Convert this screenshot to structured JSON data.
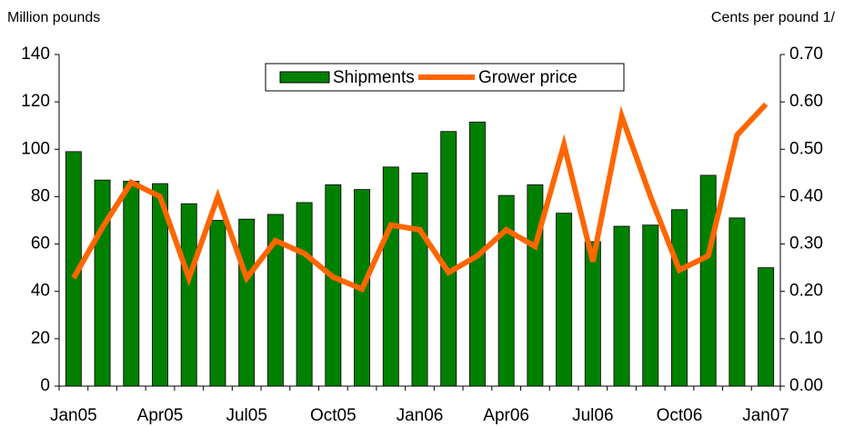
{
  "chart_data": {
    "type": "bar-line",
    "y_label": "Million pounds",
    "y2_label": "Cents per pound 1/",
    "categories": [
      "Jan05",
      null,
      null,
      "Apr05",
      null,
      null,
      "Jul05",
      null,
      null,
      "Oct05",
      null,
      null,
      "Jan06",
      null,
      null,
      "Apr06",
      null,
      null,
      "Jul06",
      null,
      null,
      "Oct06",
      null,
      null,
      "Jan07"
    ],
    "series": [
      {
        "name": "Shipments",
        "type": "bar",
        "color": "#008000",
        "values": [
          99,
          87,
          86.5,
          85.5,
          77,
          70,
          70.5,
          72.5,
          77.5,
          85,
          83,
          92.5,
          90,
          107.5,
          111.5,
          80.5,
          85,
          73,
          61,
          67.5,
          68,
          74.5,
          89,
          71,
          50
        ]
      },
      {
        "name": "Grower price",
        "type": "line",
        "color": "#ff6600",
        "axis": "y2",
        "values": [
          0.228,
          0.335,
          0.43,
          0.4,
          0.228,
          0.4,
          0.228,
          0.307,
          0.28,
          0.23,
          0.205,
          0.34,
          0.33,
          0.24,
          0.275,
          0.33,
          0.295,
          0.51,
          0.263,
          0.57,
          0.4,
          0.245,
          0.275,
          0.53,
          0.595
        ]
      }
    ],
    "ylim": [
      0,
      140
    ],
    "yticks": [
      0,
      20,
      40,
      60,
      80,
      100,
      120,
      140
    ],
    "y2lim": [
      0,
      0.7
    ],
    "y2ticks": [
      {
        "value": 0,
        "label": "0.00"
      },
      {
        "value": 0.1,
        "label": "0.10"
      },
      {
        "value": 0.2,
        "label": "0.20"
      },
      {
        "value": 0.3,
        "label": "0.30"
      },
      {
        "value": 0.4,
        "label": "0.40"
      },
      {
        "value": 0.5,
        "label": "0.50"
      },
      {
        "value": 0.6,
        "label": "0.60"
      },
      {
        "value": 0.7,
        "label": "0.70"
      }
    ],
    "legend": "top"
  }
}
